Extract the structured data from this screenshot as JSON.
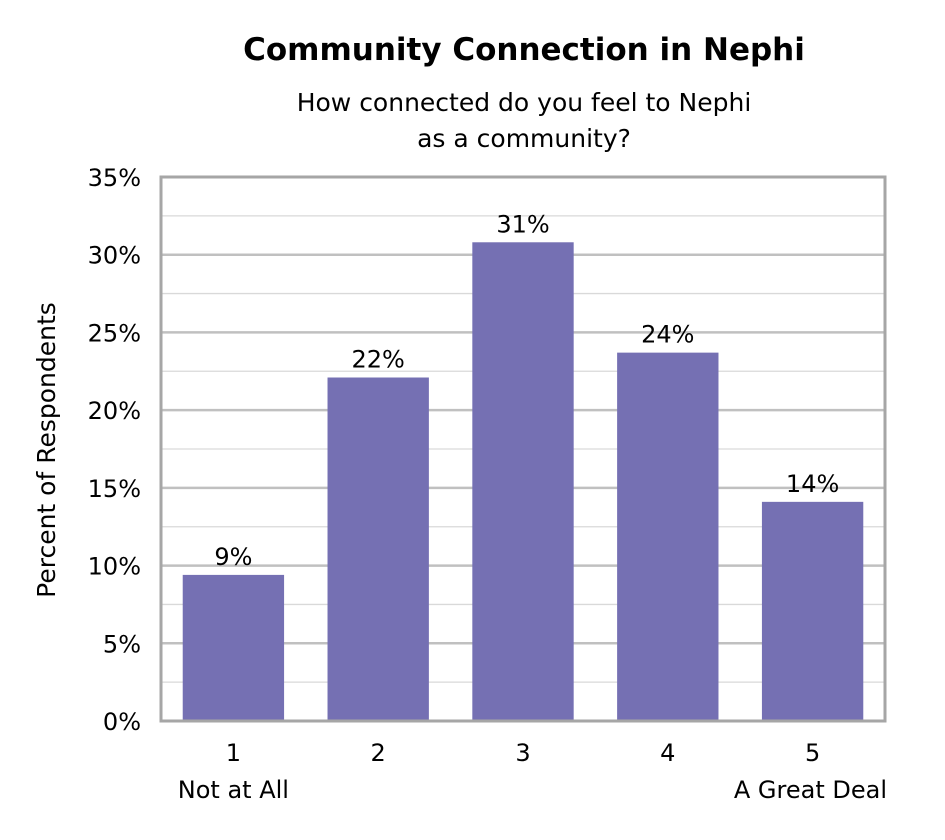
{
  "chart_data": {
    "type": "bar",
    "title": "Community Connection in Nephi",
    "subtitle_lines": [
      "How connected do you feel to Nephi",
      "as a community?"
    ],
    "ylabel": "Percent of Respondents",
    "xlabel": "",
    "categories": [
      "1",
      "2",
      "3",
      "4",
      "5"
    ],
    "category_sublabels": {
      "first": "Not at All",
      "last": "A Great Deal"
    },
    "values": [
      9.4,
      22.1,
      30.8,
      23.7,
      14.1
    ],
    "data_labels": [
      "9%",
      "22%",
      "31%",
      "24%",
      "14%"
    ],
    "ylim": [
      0,
      35
    ],
    "yticks": [
      0,
      5,
      10,
      15,
      20,
      25,
      30,
      35
    ],
    "ytick_labels": [
      "0%",
      "5%",
      "10%",
      "15%",
      "20%",
      "25%",
      "30%",
      "35%"
    ],
    "grid": true,
    "minor_grid": true,
    "legend": false,
    "bar_color": "#7570b3",
    "grid_color": "#c0c0c0",
    "frame_color": "#a6a6a6"
  }
}
